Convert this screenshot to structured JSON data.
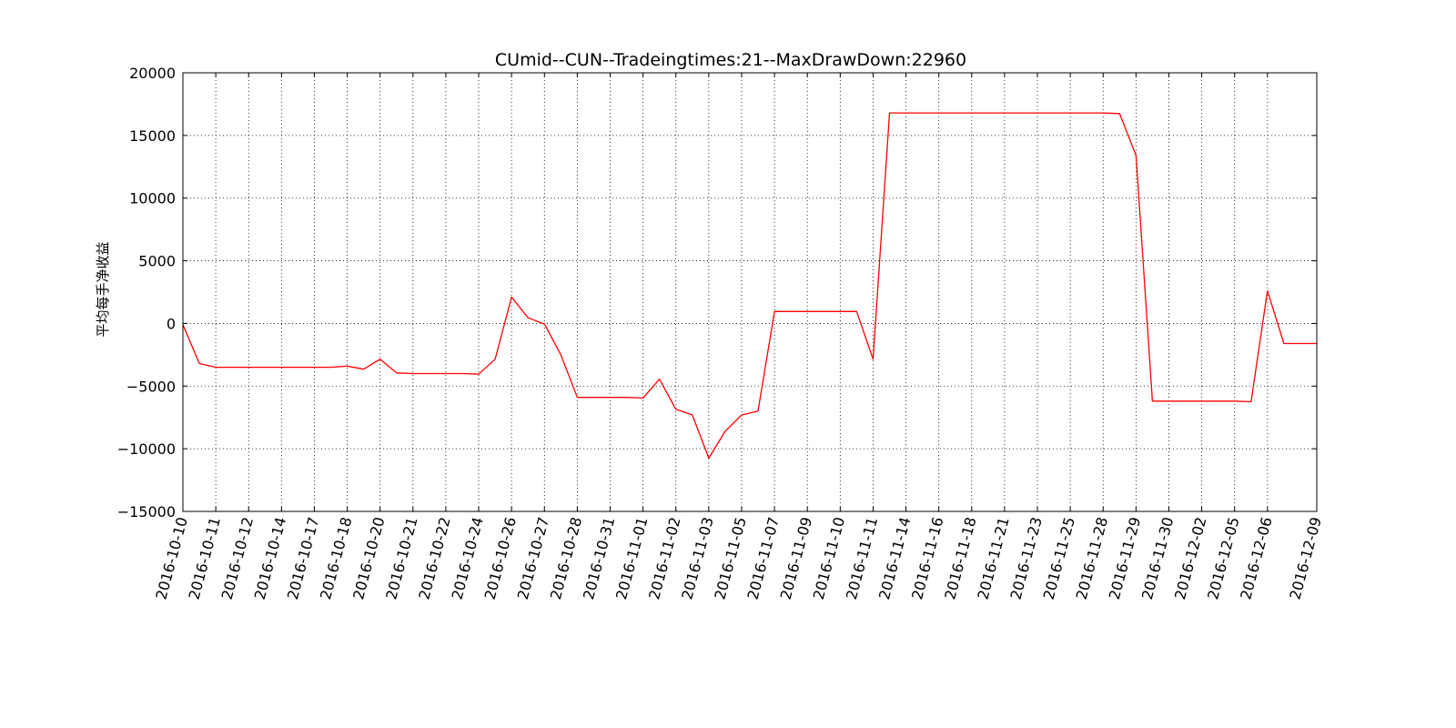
{
  "chart_data": {
    "type": "line",
    "title": "CUmid--CUN--Tradeingtimes:21--MaxDrawDown:22960",
    "xlabel": "",
    "ylabel": "平均每手净收益",
    "ylim": [
      -15000,
      20000
    ],
    "yticks": [
      20000,
      15000,
      10000,
      5000,
      0,
      -5000,
      -10000,
      -15000
    ],
    "ytick_labels": [
      "20000",
      "15000",
      "10000",
      "5000",
      "0",
      "−5000",
      "−10000",
      "−15000"
    ],
    "xtick_labels": [
      "2016-10-10",
      "2016-10-11",
      "2016-10-12",
      "2016-10-14",
      "2016-10-17",
      "2016-10-18",
      "2016-10-20",
      "2016-10-21",
      "2016-10-22",
      "2016-10-24",
      "2016-10-26",
      "2016-10-27",
      "2016-10-28",
      "2016-10-31",
      "2016-11-01",
      "2016-11-02",
      "2016-11-03",
      "2016-11-05",
      "2016-11-07",
      "2016-11-09",
      "2016-11-10",
      "2016-11-11",
      "2016-11-14",
      "2016-11-16",
      "2016-11-18",
      "2016-11-21",
      "2016-11-23",
      "2016-11-25",
      "2016-11-28",
      "2016-11-29",
      "2016-11-30",
      "2016-12-02",
      "2016-12-05",
      "2016-12-06",
      "2016-12-09"
    ],
    "xtick_positions": [
      0,
      2,
      4,
      6,
      8,
      10,
      12,
      14,
      16,
      18,
      20,
      22,
      24,
      26,
      28,
      30,
      32,
      34,
      36,
      38,
      40,
      42,
      44,
      46,
      48,
      50,
      52,
      54,
      56,
      58,
      60,
      62,
      64,
      66,
      69
    ],
    "grid": true,
    "grid_style": "dotted",
    "line_color": "#ff0000",
    "series": [
      {
        "x": [
          0,
          1,
          2,
          3,
          4,
          5,
          6,
          7,
          8,
          9,
          10,
          11,
          12,
          13,
          14,
          15,
          16,
          17,
          18,
          19,
          20,
          21,
          22,
          23,
          24,
          25,
          26,
          27,
          28,
          29,
          30,
          31,
          32,
          33,
          34,
          35,
          36,
          37,
          38,
          39,
          40,
          41,
          42,
          43,
          44,
          45,
          46,
          47,
          48,
          49,
          50,
          51,
          52,
          53,
          54,
          55,
          56,
          57,
          58,
          59,
          60,
          61,
          62,
          63,
          64,
          65,
          66,
          67,
          68,
          69
        ],
        "values": [
          -100,
          -3200,
          -3500,
          -3500,
          -3500,
          -3500,
          -3500,
          -3500,
          -3500,
          -3500,
          -3400,
          -3650,
          -2850,
          -3950,
          -4000,
          -4000,
          -4000,
          -4000,
          -4050,
          -2850,
          2100,
          450,
          -50,
          -2500,
          -5900,
          -5900,
          -5900,
          -5900,
          -5950,
          -4450,
          -6850,
          -7300,
          -10750,
          -8600,
          -7300,
          -7000,
          950,
          950,
          950,
          950,
          950,
          950,
          -2850,
          16800,
          16800,
          16800,
          16800,
          16800,
          16800,
          16800,
          16800,
          16800,
          16800,
          16800,
          16800,
          16800,
          16800,
          16750,
          13400,
          -6200,
          -6200,
          -6200,
          -6200,
          -6200,
          -6200,
          -6250,
          2600,
          -1600,
          -1600,
          -1600
        ]
      }
    ]
  }
}
